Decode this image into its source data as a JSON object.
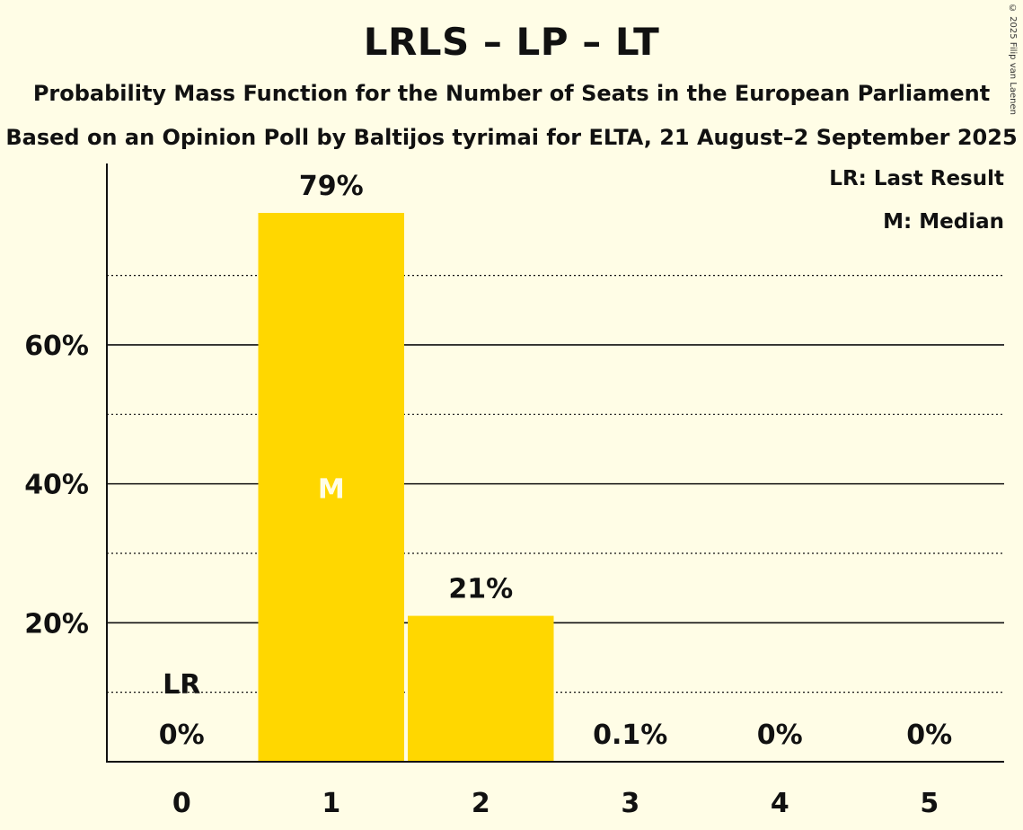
{
  "chart_data": {
    "type": "bar",
    "title": "LRLS – LP – LT",
    "subtitle": "Probability Mass Function for the Number of Seats in the European Parliament",
    "subtitle2": "Based on an Opinion Poll by Baltijos tyrimai for ELTA, 21 August–2 September 2025",
    "copyright": "© 2025 Filip van Laenen",
    "categories": [
      "0",
      "1",
      "2",
      "3",
      "4",
      "5"
    ],
    "values": [
      0,
      79,
      21,
      0.1,
      0,
      0
    ],
    "value_labels": [
      "0%",
      "79%",
      "21%",
      "0.1%",
      "0%",
      "0%"
    ],
    "ylim": [
      0,
      86
    ],
    "yticks_major": [
      20,
      40,
      60
    ],
    "ytick_labels": [
      "20%",
      "40%",
      "60%"
    ],
    "yticks_minor": [
      10,
      30,
      50,
      70
    ],
    "last_result_index": 0,
    "last_result_label": "LR",
    "median_index": 1,
    "median_label": "M",
    "legend": [
      "LR: Last Result",
      "M: Median"
    ],
    "legend_position": "top-right",
    "bar_color": "#FFD700",
    "median_text_color": "#FFFDE6",
    "background": "#FFFDE6"
  }
}
